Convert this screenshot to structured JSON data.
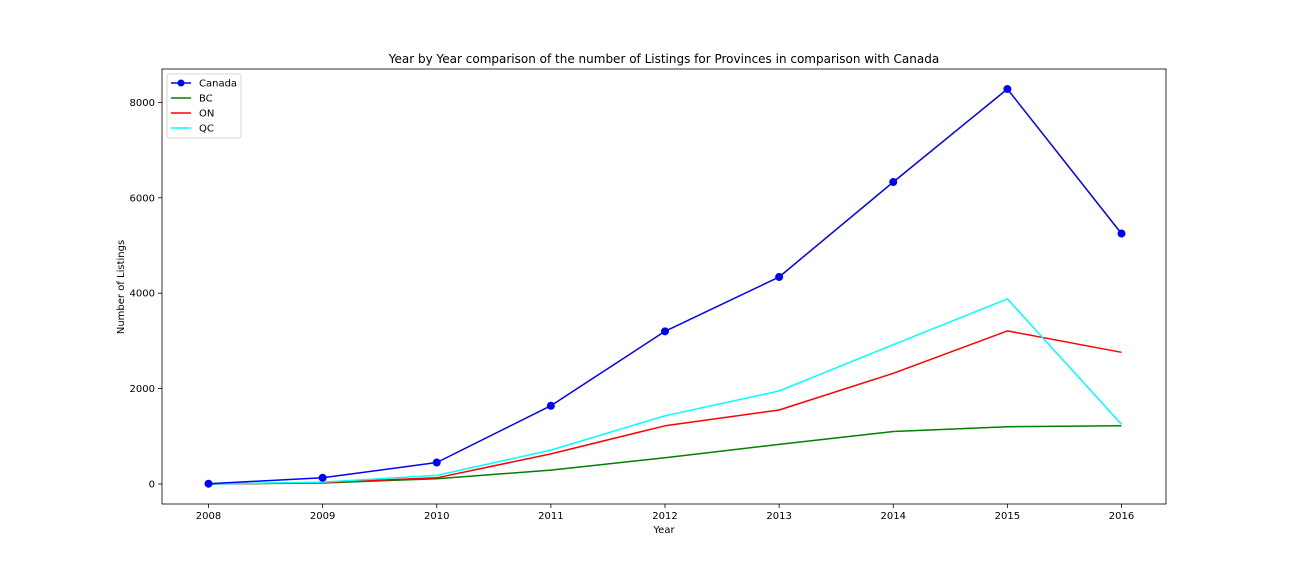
{
  "chart_data": {
    "type": "line",
    "title": "Year by Year comparison of the number of Listings for Provinces in comparison with Canada",
    "xlabel": "Year",
    "ylabel": "Number of Listings",
    "categories": [
      "2008",
      "2009",
      "2010",
      "2011",
      "2012",
      "2013",
      "2014",
      "2015",
      "2016"
    ],
    "y_ticks": [
      "0",
      "2000",
      "4000",
      "6000",
      "8000"
    ],
    "ylim": [
      -420,
      8700
    ],
    "grid": false,
    "legend_position": "top-left",
    "series": [
      {
        "name": "Canada",
        "color": "#0000ff",
        "marker": "circle",
        "values": [
          5,
          130,
          450,
          1640,
          3200,
          4340,
          6330,
          8280,
          5250
        ]
      },
      {
        "name": "BC",
        "color": "#008000",
        "marker": "none",
        "values": [
          0,
          20,
          110,
          290,
          550,
          830,
          1100,
          1200,
          1220
        ]
      },
      {
        "name": "ON",
        "color": "#ff0000",
        "marker": "none",
        "values": [
          0,
          30,
          130,
          630,
          1220,
          1550,
          2320,
          3210,
          2760
        ]
      },
      {
        "name": "QC",
        "color": "#00ffff",
        "marker": "none",
        "values": [
          0,
          40,
          180,
          710,
          1430,
          1950,
          2920,
          3880,
          1250
        ]
      }
    ]
  }
}
